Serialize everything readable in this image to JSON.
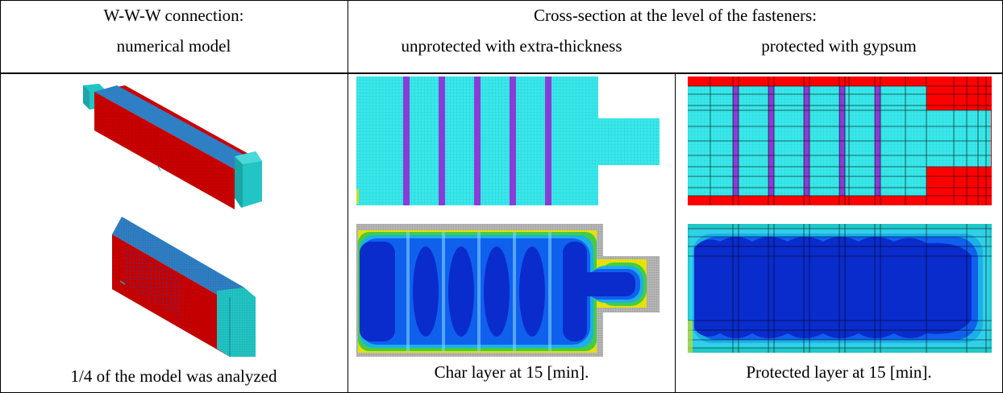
{
  "header": {
    "col1_line1": "W-W-W connection:",
    "col1_line2": "numerical model",
    "col2_line1": "Cross-section at the level of the fasteners:",
    "col2_sub_left": "unprotected with extra-thickness",
    "col2_sub_right": "protected with gypsum"
  },
  "captions": {
    "model": "1/4 of the model was analyzed",
    "char": "Char layer at 15 [min].",
    "protected": "Protected layer at 15 [min]."
  },
  "colors": {
    "wood_red": "#c80000",
    "top_blue": "#2f7fc4",
    "end_cyan": "#22c4c4",
    "mesh_cyan": "#38e8ea",
    "fastener_purple": "#8a3cd6",
    "gypsum_red": "#ff0000",
    "char_dark_blue": "#0a2ccc",
    "grid_gray": "#a0a0a0"
  }
}
